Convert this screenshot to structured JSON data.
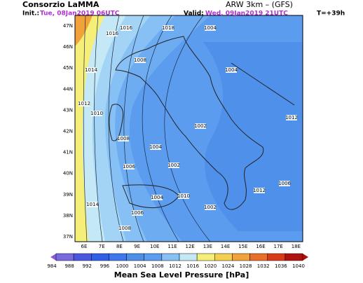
{
  "header": {
    "org": "Consorzio LaMMA",
    "init_label": "Init.:",
    "init_time": "Tue, 08Jan2019 06UTC",
    "valid_label": "Valid:",
    "valid_time": "Wed, 09Jan2019 21UTC",
    "model": "ARW 3km – (GFS)",
    "lead": "T=+39h"
  },
  "map": {
    "lat_labels": [
      "47N",
      "46N",
      "45N",
      "44N",
      "43N",
      "42N",
      "41N",
      "40N",
      "39N",
      "38N",
      "37N"
    ],
    "lon_labels": [
      "6E",
      "7E",
      "8E",
      "9E",
      "10E",
      "11E",
      "12E",
      "13E",
      "14E",
      "15E",
      "16E",
      "17E",
      "18E"
    ],
    "isobar_labels": [
      "1016",
      "1018",
      "1014",
      "1012",
      "1010",
      "1008",
      "1006",
      "1004",
      "1002",
      "1004",
      "1006",
      "1008",
      "1010",
      "1012",
      "1014",
      "1016",
      "1004",
      "1002",
      "1006",
      "1008",
      "1004",
      "1012",
      "1002"
    ]
  },
  "colorbar": {
    "ticks": [
      "984",
      "988",
      "992",
      "996",
      "1000",
      "1004",
      "1008",
      "1012",
      "1016",
      "1020",
      "1024",
      "1028",
      "1032",
      "1036",
      "1040"
    ],
    "title": "Mean Sea Level Pressure [hPa]"
  }
}
